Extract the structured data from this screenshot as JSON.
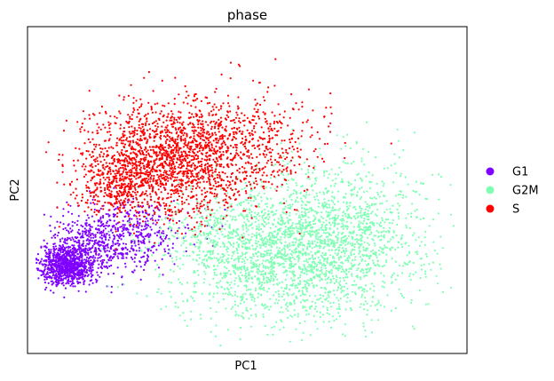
{
  "chart_data": {
    "type": "scatter",
    "title": "phase",
    "xlabel": "PC1",
    "ylabel": "PC2",
    "xlim": [
      0,
      100
    ],
    "ylim": [
      0,
      100
    ],
    "grid": false,
    "x_ticks": false,
    "y_ticks": false,
    "legend_position": "right-outside",
    "series": [
      {
        "name": "G1",
        "color": "#8000ff",
        "clusters": [
          {
            "cx": 9,
            "cy": 27,
            "sx": 3.2,
            "sy": 3.0,
            "n": 900
          },
          {
            "cx": 16,
            "cy": 34,
            "sx": 5.5,
            "sy": 5.0,
            "n": 500
          },
          {
            "cx": 26,
            "cy": 37,
            "sx": 6.0,
            "sy": 5.0,
            "n": 250
          }
        ]
      },
      {
        "name": "G2M",
        "color": "#80ffb4",
        "clusters": [
          {
            "cx": 60,
            "cy": 31,
            "sx": 13.0,
            "sy": 10.5,
            "n": 2200
          },
          {
            "cx": 73,
            "cy": 41,
            "sx": 10.0,
            "sy": 10.0,
            "n": 500
          },
          {
            "cx": 43,
            "cy": 36,
            "sx": 6.0,
            "sy": 6.0,
            "n": 200
          }
        ]
      },
      {
        "name": "S",
        "color": "#ff0000",
        "clusters": [
          {
            "cx": 32,
            "cy": 59,
            "sx": 9.5,
            "sy": 8.5,
            "n": 1700
          },
          {
            "cx": 50,
            "cy": 64,
            "sx": 9.0,
            "sy": 8.0,
            "n": 450
          },
          {
            "cx": 20,
            "cy": 52,
            "sx": 5.0,
            "sy": 4.5,
            "n": 300
          }
        ]
      }
    ]
  }
}
